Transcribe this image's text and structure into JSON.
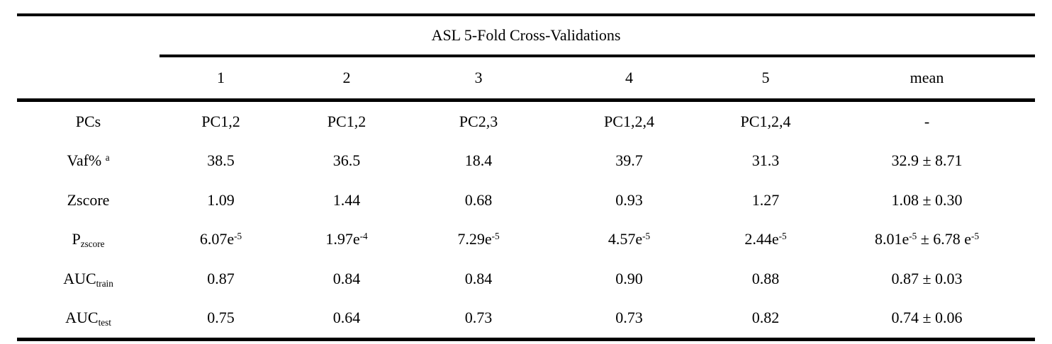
{
  "colors": {
    "text": "#000000",
    "background": "#ffffff",
    "rule": "#000000"
  },
  "table": {
    "title": "ASL 5-Fold Cross-Validations",
    "columns": [
      "1",
      "2",
      "3",
      "4",
      "5",
      "mean"
    ],
    "rows": [
      {
        "label": "PCs",
        "cells": [
          "PC1,2",
          "PC1,2",
          "PC2,3",
          "PC1,2,4",
          "PC1,2,4",
          "-"
        ]
      },
      {
        "label": "Vaf% ^{a}",
        "cells": [
          "38.5",
          "36.5",
          "18.4",
          "39.7",
          "31.3",
          "32.9 ± 8.71"
        ]
      },
      {
        "label": "Zscore",
        "cells": [
          "1.09",
          "1.44",
          "0.68",
          "0.93",
          "1.27",
          "1.08 ± 0.30"
        ]
      },
      {
        "label": "P_{zscore}",
        "cells": [
          "6.07e^{-5}",
          "1.97e^{-4}",
          "7.29e^{-5}",
          "4.57e^{-5}",
          "2.44e^{-5}",
          "8.01e^{-5} ± 6.78 e^{-5}"
        ]
      },
      {
        "label": "AUC_{train}",
        "cells": [
          "0.87",
          "0.84",
          "0.84",
          "0.90",
          "0.88",
          "0.87 ± 0.03"
        ]
      },
      {
        "label": "AUC_{test}",
        "cells": [
          "0.75",
          "0.64",
          "0.73",
          "0.73",
          "0.82",
          "0.74 ± 0.06"
        ]
      }
    ]
  }
}
